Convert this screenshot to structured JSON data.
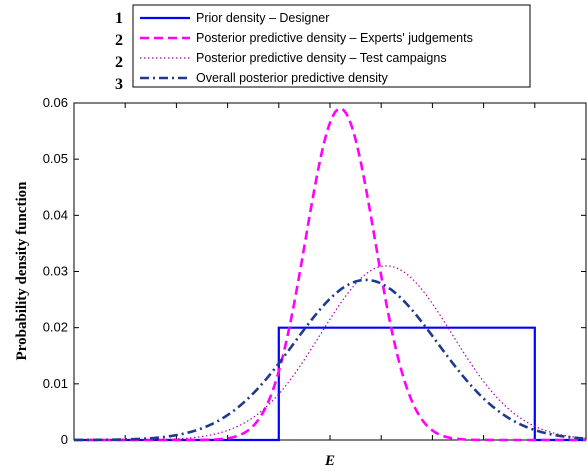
{
  "chart_data": {
    "type": "line",
    "xlabel": "E",
    "ylabel": "Probability density function",
    "x_ticks_labeled": false,
    "ylim": [
      0,
      0.06
    ],
    "yticks": [
      "0",
      "0.01",
      "0.02",
      "0.03",
      "0.04",
      "0.05",
      "0.06"
    ],
    "legend_placement": "top-center (above plot)",
    "legend_markers": [
      "1",
      "2",
      "2",
      "3"
    ],
    "series": [
      {
        "name": "Prior density – Designer",
        "color": "#0000ff",
        "style": "solid",
        "shape": "uniform",
        "lo": 40,
        "hi": 90,
        "height": 0.02
      },
      {
        "name": "Posterior predictive density – Experts' judgements",
        "color": "#ff00ff",
        "style": "dashed",
        "shape": "normal",
        "mean": 52,
        "peak": 0.059
      },
      {
        "name": "Posterior predictive density – Test campaigns",
        "color": "#b000b0",
        "style": "dotted",
        "shape": "normal",
        "mean": 61,
        "peak": 0.031
      },
      {
        "name": "Overall posterior predictive density",
        "color": "#1f3a8a",
        "style": "dashdot",
        "shape": "normal",
        "mean": 57,
        "peak": 0.0285
      }
    ]
  }
}
